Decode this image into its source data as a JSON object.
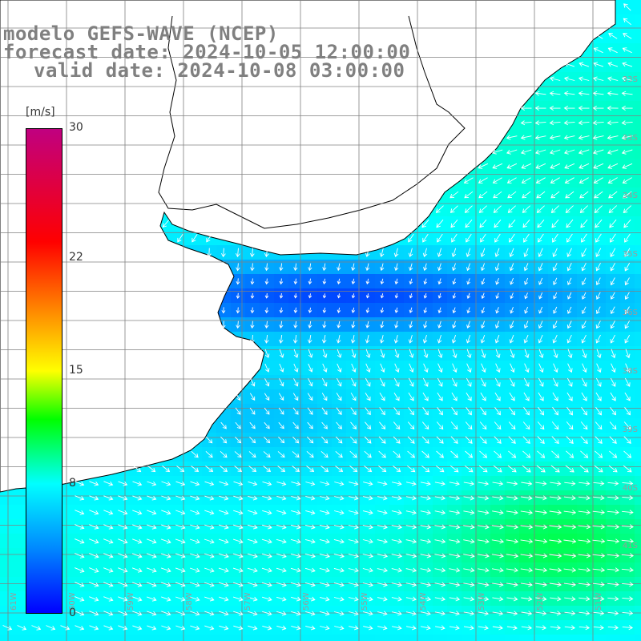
{
  "title": {
    "line1": "modelo GEFS-WAVE (NCEP)",
    "line2": "forecast date: 2024-10-05 12:00:00",
    "line3": "valid date: 2024-10-08 03:00:00"
  },
  "colorbar": {
    "unit": "[m/s]",
    "min": 0,
    "max": 30,
    "ticks": [
      {
        "value": 30,
        "label": "30"
      },
      {
        "value": 22,
        "label": "22"
      },
      {
        "value": 15,
        "label": "15"
      },
      {
        "value": 8,
        "label": "8"
      },
      {
        "value": 0,
        "label": "0"
      }
    ],
    "stops": [
      {
        "value": 0,
        "color": "#0000ff"
      },
      {
        "value": 4,
        "color": "#0088ff"
      },
      {
        "value": 8,
        "color": "#00ffff"
      },
      {
        "value": 12,
        "color": "#00ff00"
      },
      {
        "value": 15,
        "color": "#ffff00"
      },
      {
        "value": 19,
        "color": "#ff8000"
      },
      {
        "value": 23,
        "color": "#ff0000"
      },
      {
        "value": 30,
        "color": "#c00080"
      }
    ]
  },
  "map": {
    "lon_labels": [
      "61W",
      "60W",
      "59W",
      "58W",
      "57W",
      "56W",
      "55W",
      "54W",
      "53W",
      "52W",
      "51W"
    ],
    "lat_labels": [
      "33S",
      "33S",
      "34S",
      "35S",
      "36S",
      "38S",
      "39S",
      "40S",
      "41S"
    ],
    "land_color": "#ffffff",
    "coast_color": "#000000",
    "grid_color": "#808080",
    "arrow_color": "#ffffff"
  }
}
